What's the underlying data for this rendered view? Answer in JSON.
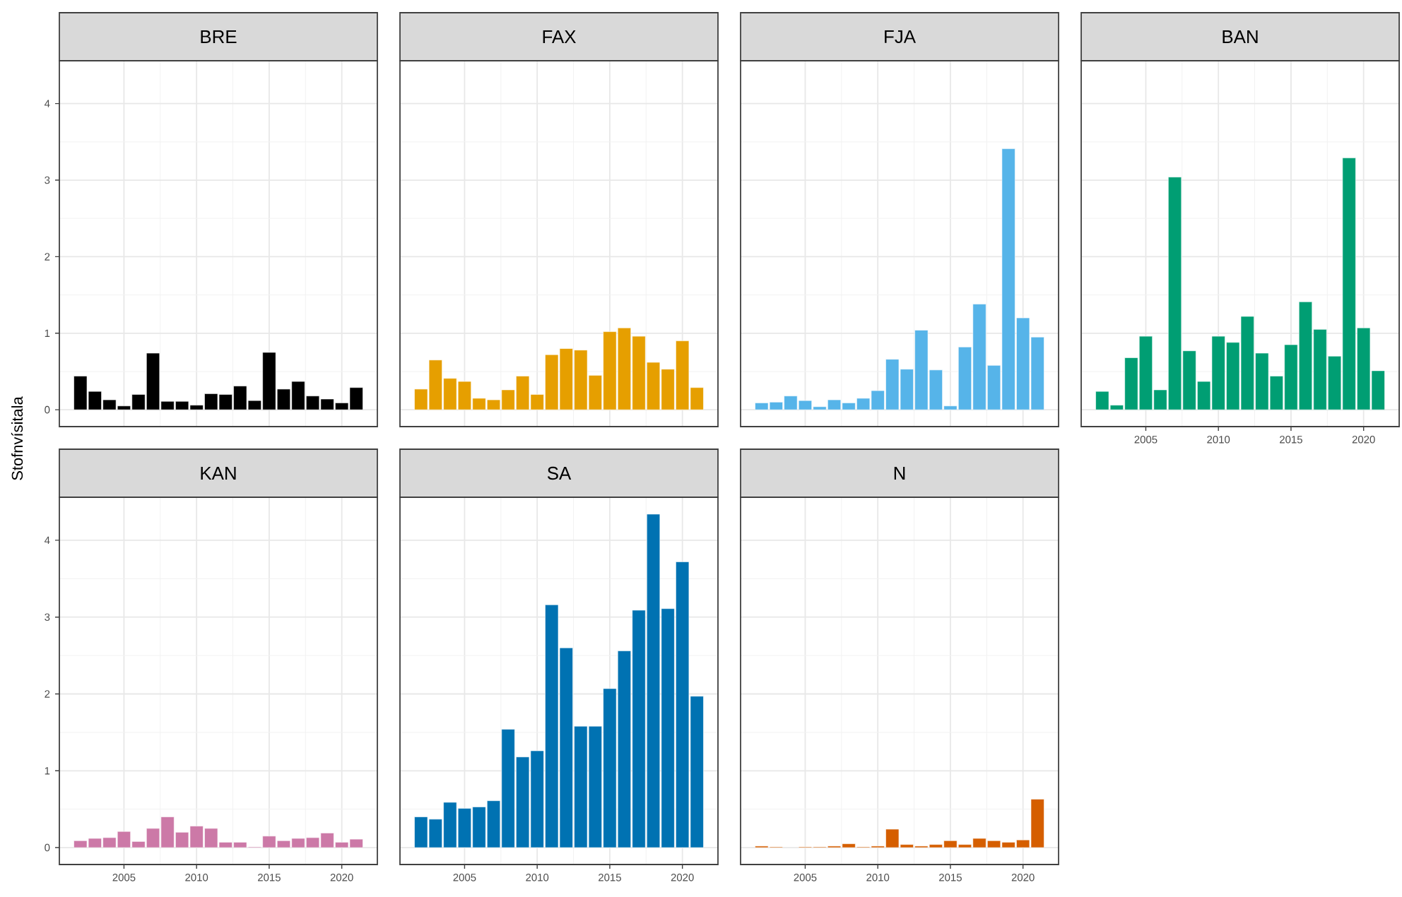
{
  "chart_data": [
    {
      "type": "bar",
      "title": "BRE",
      "ylabel": "Stofnvísitala",
      "x": [
        2002,
        2003,
        2004,
        2005,
        2006,
        2007,
        2008,
        2009,
        2010,
        2011,
        2012,
        2013,
        2014,
        2015,
        2016,
        2017,
        2018,
        2019,
        2020,
        2021
      ],
      "values": [
        0.44,
        0.24,
        0.13,
        0.05,
        0.2,
        0.74,
        0.11,
        0.11,
        0.06,
        0.21,
        0.2,
        0.31,
        0.12,
        0.75,
        0.27,
        0.37,
        0.18,
        0.14,
        0.09,
        0.29
      ],
      "color": "#000000",
      "xlim": [
        2000.55,
        2022.45
      ],
      "ylim": [
        -0.22,
        4.56
      ],
      "xticks": [
        2005,
        2010,
        2015,
        2020
      ],
      "yticks": [
        0,
        1,
        2,
        3,
        4
      ],
      "grid": true,
      "tick_labels": "y"
    },
    {
      "type": "bar",
      "title": "FAX",
      "x": [
        2002,
        2003,
        2004,
        2005,
        2006,
        2007,
        2008,
        2009,
        2010,
        2011,
        2012,
        2013,
        2014,
        2015,
        2016,
        2017,
        2018,
        2019,
        2020,
        2021
      ],
      "values": [
        0.27,
        0.65,
        0.41,
        0.37,
        0.15,
        0.13,
        0.26,
        0.44,
        0.2,
        0.72,
        0.8,
        0.78,
        0.45,
        1.02,
        1.07,
        0.96,
        0.62,
        0.53,
        0.9,
        0.29
      ],
      "color": "#E69F00",
      "xlim": [
        2000.55,
        2022.45
      ],
      "ylim": [
        -0.22,
        4.56
      ],
      "xticks": [
        2005,
        2010,
        2015,
        2020
      ],
      "yticks": [
        0,
        1,
        2,
        3,
        4
      ],
      "grid": true,
      "tick_labels": false
    },
    {
      "type": "bar",
      "title": "FJA",
      "x": [
        2002,
        2003,
        2004,
        2005,
        2006,
        2007,
        2008,
        2009,
        2010,
        2011,
        2012,
        2013,
        2014,
        2015,
        2016,
        2017,
        2018,
        2019,
        2020,
        2021
      ],
      "values": [
        0.09,
        0.1,
        0.18,
        0.12,
        0.04,
        0.13,
        0.09,
        0.15,
        0.25,
        0.66,
        0.53,
        1.04,
        0.52,
        0.05,
        0.82,
        1.38,
        0.58,
        3.41,
        1.2,
        0.95
      ],
      "color": "#56B4E9",
      "xlim": [
        2000.55,
        2022.45
      ],
      "ylim": [
        -0.22,
        4.56
      ],
      "xticks": [
        2005,
        2010,
        2015,
        2020
      ],
      "yticks": [
        0,
        1,
        2,
        3,
        4
      ],
      "grid": true,
      "tick_labels": false
    },
    {
      "type": "bar",
      "title": "BAN",
      "x": [
        2002,
        2003,
        2004,
        2005,
        2006,
        2007,
        2008,
        2009,
        2010,
        2011,
        2012,
        2013,
        2014,
        2015,
        2016,
        2017,
        2018,
        2019,
        2020,
        2021
      ],
      "values": [
        0.24,
        0.06,
        0.68,
        0.96,
        0.26,
        3.04,
        0.77,
        0.37,
        0.96,
        0.88,
        1.22,
        0.74,
        0.44,
        0.85,
        1.41,
        1.05,
        0.7,
        3.29,
        1.07,
        0.51
      ],
      "color": "#009E73",
      "xlim": [
        2000.55,
        2022.45
      ],
      "ylim": [
        -0.22,
        4.56
      ],
      "xticks": [
        2005,
        2010,
        2015,
        2020
      ],
      "yticks": [
        0,
        1,
        2,
        3,
        4
      ],
      "grid": true,
      "tick_labels": "x"
    },
    {
      "type": "bar",
      "title": "KAN",
      "x": [
        2002,
        2003,
        2004,
        2005,
        2006,
        2007,
        2008,
        2009,
        2010,
        2011,
        2012,
        2013,
        2014,
        2015,
        2016,
        2017,
        2018,
        2019,
        2020,
        2021
      ],
      "values": [
        0.09,
        0.12,
        0.13,
        0.21,
        0.08,
        0.25,
        0.4,
        0.2,
        0.28,
        0.25,
        0.07,
        0.07,
        0.01,
        0.15,
        0.09,
        0.12,
        0.13,
        0.19,
        0.07,
        0.11
      ],
      "color": "#CC79A7",
      "xlim": [
        2000.55,
        2022.45
      ],
      "ylim": [
        -0.22,
        4.56
      ],
      "xticks": [
        2005,
        2010,
        2015,
        2020
      ],
      "yticks": [
        0,
        1,
        2,
        3,
        4
      ],
      "grid": true
    },
    {
      "type": "bar",
      "title": "SA",
      "x": [
        2002,
        2003,
        2004,
        2005,
        2006,
        2007,
        2008,
        2009,
        2010,
        2011,
        2012,
        2013,
        2014,
        2015,
        2016,
        2017,
        2018,
        2019,
        2020,
        2021
      ],
      "values": [
        0.4,
        0.37,
        0.59,
        0.51,
        0.53,
        0.61,
        1.54,
        1.18,
        1.26,
        3.16,
        2.6,
        1.58,
        1.58,
        2.07,
        2.56,
        3.09,
        4.34,
        3.11,
        3.72,
        1.97
      ],
      "color": "#0072B2",
      "xlim": [
        2000.55,
        2022.45
      ],
      "ylim": [
        -0.22,
        4.56
      ],
      "xticks": [
        2005,
        2010,
        2015,
        2020
      ],
      "yticks": [
        0,
        1,
        2,
        3,
        4
      ],
      "grid": true,
      "tick_labels": "x"
    },
    {
      "type": "bar",
      "title": "N",
      "x": [
        2002,
        2003,
        2004,
        2005,
        2006,
        2007,
        2008,
        2009,
        2010,
        2011,
        2012,
        2013,
        2014,
        2015,
        2016,
        2017,
        2018,
        2019,
        2020,
        2021
      ],
      "values": [
        0.02,
        0.01,
        null,
        0.01,
        0.01,
        0.02,
        0.05,
        0.01,
        0.02,
        0.24,
        0.04,
        0.02,
        0.04,
        0.09,
        0.04,
        0.12,
        0.09,
        0.07,
        0.1,
        0.63
      ],
      "color": "#D55E00",
      "xlim": [
        2000.55,
        2022.45
      ],
      "ylim": [
        -0.22,
        4.56
      ],
      "xticks": [
        2005,
        2010,
        2015,
        2020
      ],
      "yticks": [
        0,
        1,
        2,
        3,
        4
      ],
      "grid": true,
      "tick_labels": "x"
    }
  ]
}
